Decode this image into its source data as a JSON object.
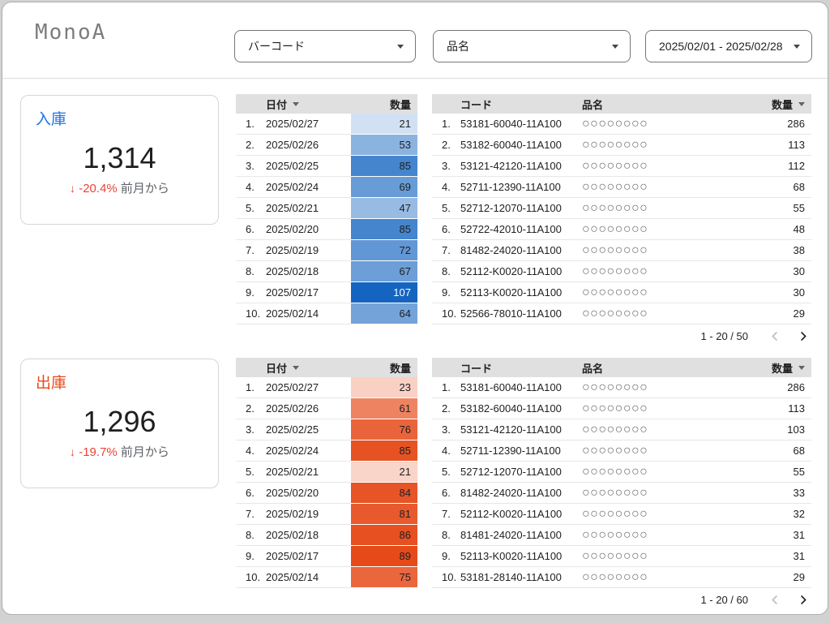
{
  "page": {
    "logo": "MonoA"
  },
  "filters": [
    {
      "label": "バーコード"
    },
    {
      "label": "品名"
    },
    {
      "label": "2025/02/01 - 2025/02/28"
    }
  ],
  "colors": {
    "frame_background": "#d2d2d2",
    "table_header_bg": "#e0e0e0",
    "delta_negative": "#ea4335",
    "inbound_accent": "#1a73e8",
    "inbound_heat_max": "#1565c0",
    "outbound_accent": "#e8491a",
    "outbound_heat_max": "#e64a19"
  },
  "masked_name": "○○○○○○○○",
  "sections": [
    {
      "id": "inbound",
      "accent": "#1a73e8",
      "heat": "#1565c0",
      "kpi": {
        "title": "入庫",
        "value": "1,314",
        "delta_arrow": "↓",
        "delta": "-20.4%",
        "delta_note": "前月から"
      },
      "date_table": {
        "col_date": "日付",
        "col_qty": "数量",
        "rows": [
          [
            "1.",
            "2025/02/27",
            21
          ],
          [
            "2.",
            "2025/02/26",
            53
          ],
          [
            "3.",
            "2025/02/25",
            85
          ],
          [
            "4.",
            "2025/02/24",
            69
          ],
          [
            "5.",
            "2025/02/21",
            47
          ],
          [
            "6.",
            "2025/02/20",
            85
          ],
          [
            "7.",
            "2025/02/19",
            72
          ],
          [
            "8.",
            "2025/02/18",
            67
          ],
          [
            "9.",
            "2025/02/17",
            107
          ],
          [
            "10.",
            "2025/02/14",
            64
          ]
        ]
      },
      "code_table": {
        "col_code": "コード",
        "col_name": "品名",
        "col_qty": "数量",
        "rows": [
          [
            "1.",
            "53181-60040-11A100",
            286
          ],
          [
            "2.",
            "53182-60040-11A100",
            113
          ],
          [
            "3.",
            "53121-42120-11A100",
            112
          ],
          [
            "4.",
            "52711-12390-11A100",
            68
          ],
          [
            "5.",
            "52712-12070-11A100",
            55
          ],
          [
            "6.",
            "52722-42010-11A100",
            48
          ],
          [
            "7.",
            "81482-24020-11A100",
            38
          ],
          [
            "8.",
            "52112-K0020-11A100",
            30
          ],
          [
            "9.",
            "52113-K0020-11A100",
            30
          ],
          [
            "10.",
            "52566-78010-11A100",
            29
          ]
        ],
        "pagination": "1 - 20 / 50"
      }
    },
    {
      "id": "outbound",
      "accent": "#e8491a",
      "heat": "#e64a19",
      "kpi": {
        "title": "出庫",
        "value": "1,296",
        "delta_arrow": "↓",
        "delta": "-19.7%",
        "delta_note": "前月から"
      },
      "date_table": {
        "col_date": "日付",
        "col_qty": "数量",
        "rows": [
          [
            "1.",
            "2025/02/27",
            23
          ],
          [
            "2.",
            "2025/02/26",
            61
          ],
          [
            "3.",
            "2025/02/25",
            76
          ],
          [
            "4.",
            "2025/02/24",
            85
          ],
          [
            "5.",
            "2025/02/21",
            21
          ],
          [
            "6.",
            "2025/02/20",
            84
          ],
          [
            "7.",
            "2025/02/19",
            81
          ],
          [
            "8.",
            "2025/02/18",
            86
          ],
          [
            "9.",
            "2025/02/17",
            89
          ],
          [
            "10.",
            "2025/02/14",
            75
          ]
        ]
      },
      "code_table": {
        "col_code": "コード",
        "col_name": "品名",
        "col_qty": "数量",
        "rows": [
          [
            "1.",
            "53181-60040-11A100",
            286
          ],
          [
            "2.",
            "53182-60040-11A100",
            113
          ],
          [
            "3.",
            "53121-42120-11A100",
            103
          ],
          [
            "4.",
            "52711-12390-11A100",
            68
          ],
          [
            "5.",
            "52712-12070-11A100",
            55
          ],
          [
            "6.",
            "81482-24020-11A100",
            33
          ],
          [
            "7.",
            "52112-K0020-11A100",
            32
          ],
          [
            "8.",
            "81481-24020-11A100",
            31
          ],
          [
            "9.",
            "52113-K0020-11A100",
            31
          ],
          [
            "10.",
            "53181-28140-11A100",
            29
          ]
        ],
        "pagination": "1 - 20 / 60"
      }
    }
  ]
}
